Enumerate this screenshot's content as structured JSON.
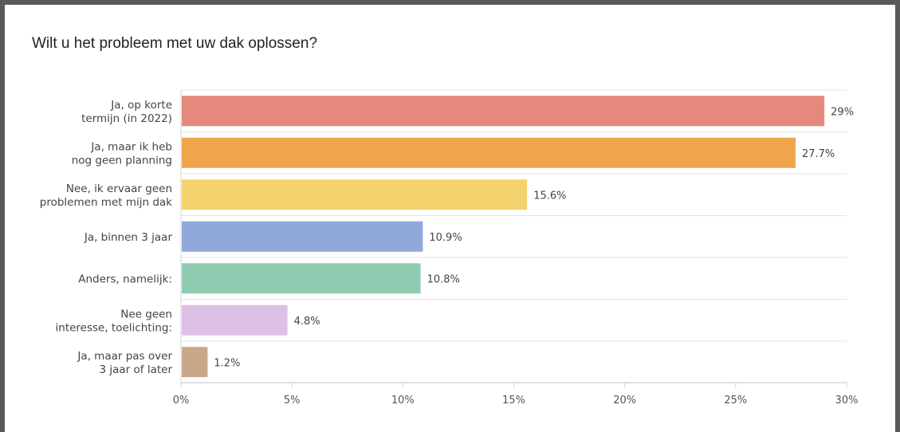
{
  "chart_data": {
    "type": "bar",
    "orientation": "horizontal",
    "title": "Wilt u het probleem met uw dak oplossen?",
    "categories": [
      [
        "Ja, op korte",
        "termijn (in 2022)"
      ],
      [
        "Ja, maar ik heb",
        "nog geen planning"
      ],
      [
        "Nee, ik ervaar geen",
        "problemen met mijn dak"
      ],
      [
        "Ja, binnen 3 jaar"
      ],
      [
        "Anders, namelijk:"
      ],
      [
        "Nee geen",
        "interesse, toelichting:"
      ],
      [
        "Ja, maar pas over",
        "3 jaar of later"
      ]
    ],
    "values": [
      29,
      27.7,
      15.6,
      10.9,
      10.8,
      4.8,
      1.2
    ],
    "value_labels": [
      "29%",
      "27.7%",
      "15.6%",
      "10.9%",
      "10.8%",
      "4.8%",
      "1.2%"
    ],
    "colors": [
      "#e4897b",
      "#eea54c",
      "#f4d36e",
      "#8fa9da",
      "#8fcbb0",
      "#ddc0e6",
      "#c9a88a"
    ],
    "xlim": [
      0,
      30
    ],
    "xticks": [
      "0%",
      "5%",
      "10%",
      "15%",
      "20%",
      "25%",
      "30%"
    ],
    "xtick_values": [
      0,
      5,
      10,
      15,
      20,
      25,
      30
    ],
    "grid": true,
    "xlabel": "",
    "ylabel": ""
  }
}
